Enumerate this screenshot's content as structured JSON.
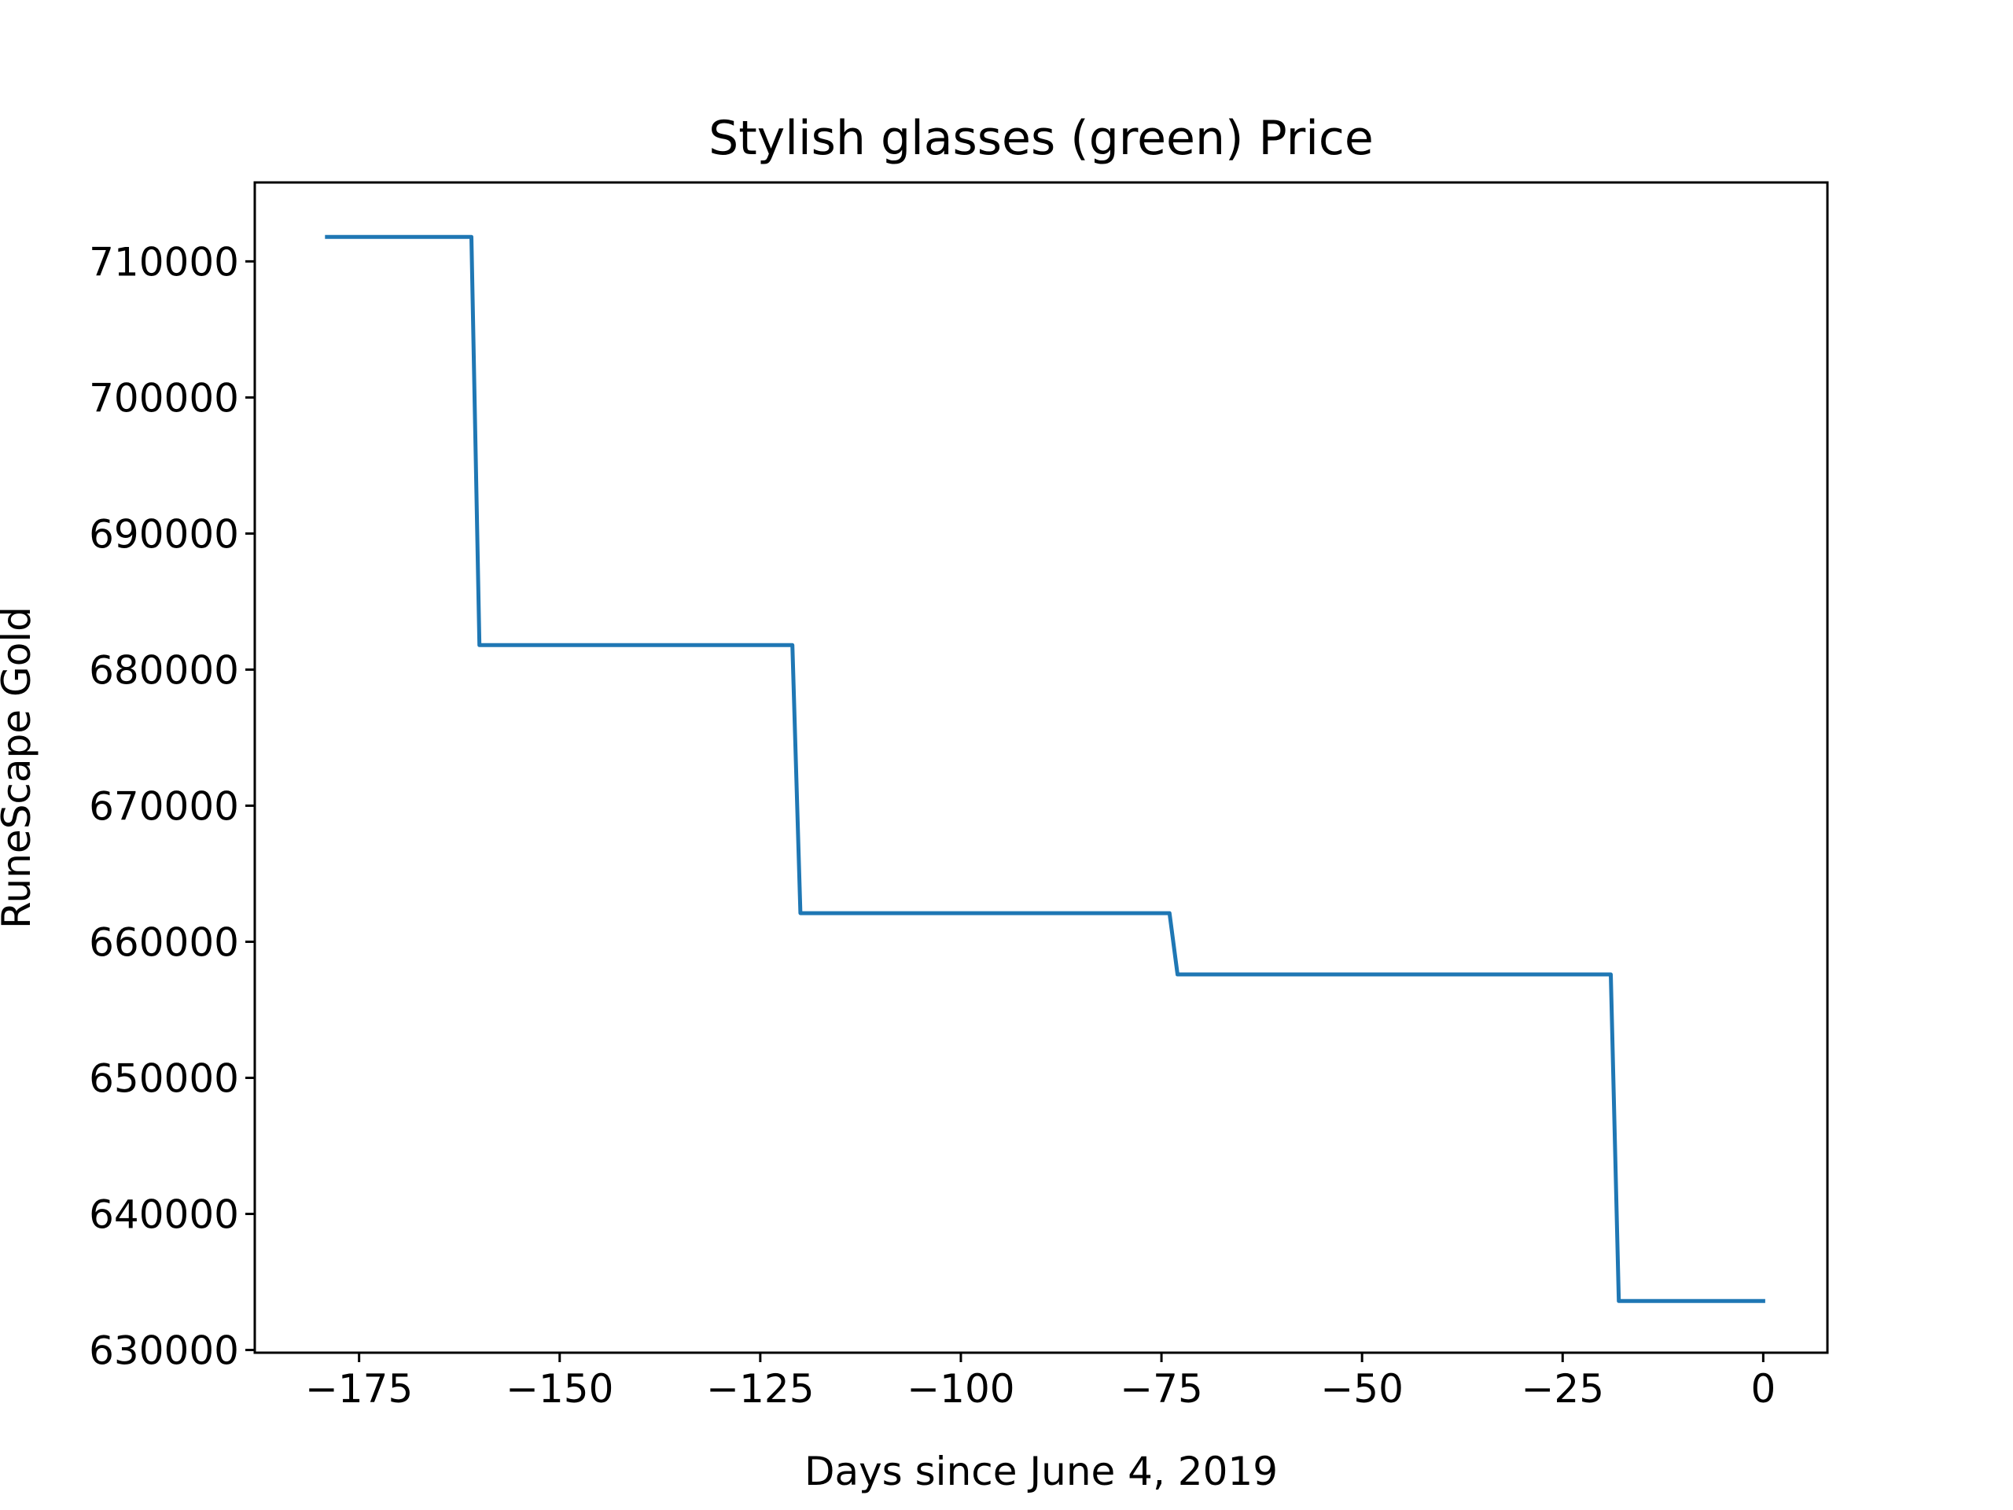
{
  "chart_data": {
    "type": "line",
    "title": "Stylish glasses (green) Price",
    "xlabel": "Days since June 4, 2019",
    "ylabel": "RuneScape Gold",
    "xlim": [
      -188,
      8
    ],
    "ylim": [
      629800,
      715800
    ],
    "x_ticks": [
      -175,
      -150,
      -125,
      -100,
      -75,
      -50,
      -25,
      0
    ],
    "x_tick_labels": [
      "−175",
      "−150",
      "−125",
      "−100",
      "−75",
      "−50",
      "−25",
      "0"
    ],
    "y_ticks": [
      630000,
      640000,
      650000,
      660000,
      670000,
      680000,
      690000,
      700000,
      710000
    ],
    "y_tick_labels": [
      "630000",
      "640000",
      "650000",
      "660000",
      "670000",
      "680000",
      "690000",
      "700000",
      "710000"
    ],
    "grid": false,
    "series": [
      {
        "color": "#1f77b4",
        "x": [
          -179,
          -161,
          -160,
          -121,
          -120,
          -74,
          -73,
          -19,
          -18,
          0
        ],
        "y": [
          711800,
          711800,
          681800,
          681800,
          662100,
          662100,
          657600,
          657600,
          633600,
          633600
        ]
      }
    ]
  }
}
